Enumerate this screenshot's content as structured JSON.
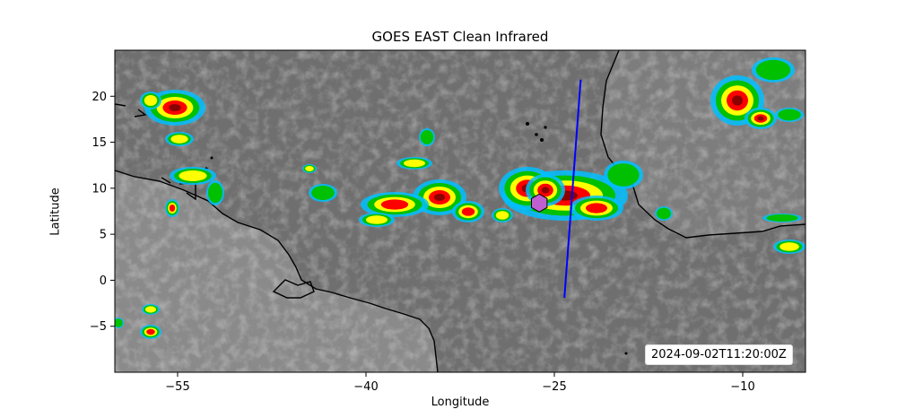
{
  "figure": {
    "title": "GOES EAST Clean Infrared",
    "xlabel": "Longitude",
    "ylabel": "Latitude",
    "timestamp": "2024-09-02T11:20:00Z"
  },
  "axes": {
    "xlim": [
      -60,
      -5
    ],
    "ylim": [
      -10,
      25
    ],
    "xticks": [
      -55,
      -40,
      -25,
      -10
    ],
    "xtick_labels": [
      "−55",
      "−40",
      "−25",
      "−10"
    ],
    "yticks": [
      -5,
      0,
      5,
      10,
      15,
      20
    ],
    "ytick_labels": [
      "−5",
      "0",
      "5",
      "10",
      "15",
      "20"
    ]
  },
  "overlays": {
    "transect": {
      "color": "#0000ff",
      "start": [
        -24.2,
        -1.9
      ],
      "end": [
        -22.9,
        21.8
      ]
    },
    "marker": {
      "shape": "hexagon",
      "color": "#c060d0",
      "lon": -26.2,
      "lat": 8.4
    }
  },
  "colors": {
    "cloud_cold": "#8b0000",
    "cloud_red": "#ff0000",
    "cloud_yellow": "#ffff00",
    "cloud_green": "#00c000",
    "cloud_cyan": "#00bfff",
    "coastline": "#000000",
    "land": "#8f8f8f",
    "ocean": "#6e6e6e"
  }
}
